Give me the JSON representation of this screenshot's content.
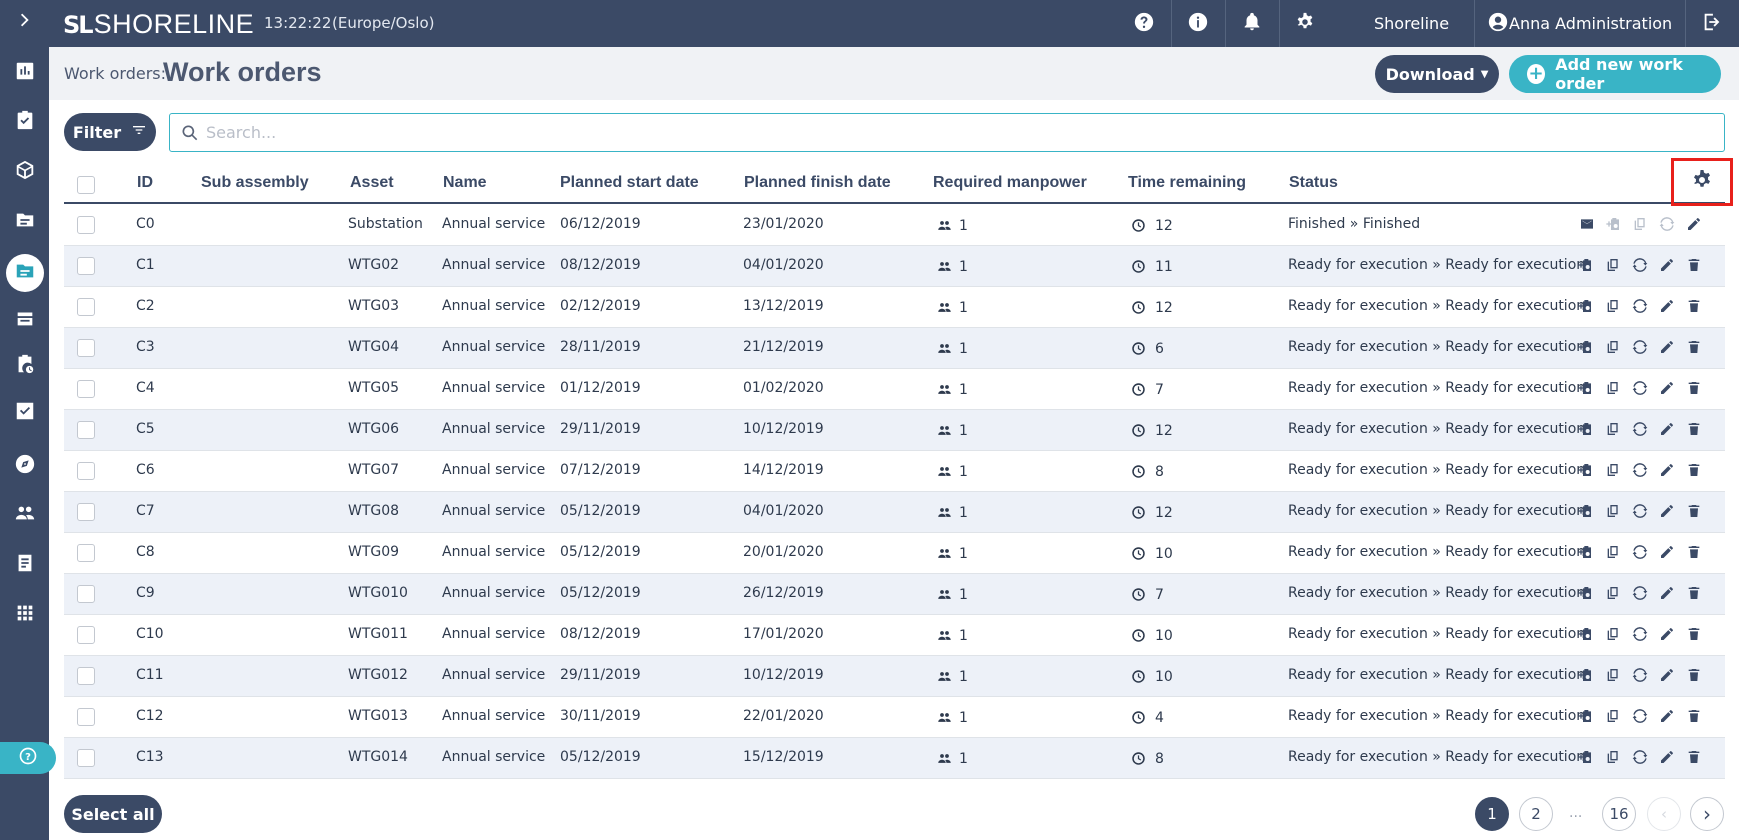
{
  "app": {
    "brand": "SHORELINE",
    "time": "13:22:22",
    "timezone": "(Europe/Oslo)"
  },
  "topbar": {
    "org_label": "Shoreline",
    "user_label": "Anna Administration"
  },
  "header": {
    "breadcrumb": "Work orders:",
    "title": "Work orders",
    "download_label": "Download",
    "add_label": "Add new work order"
  },
  "filter": {
    "label": "Filter",
    "search_placeholder": "Search..."
  },
  "table": {
    "columns": [
      "ID",
      "Sub assembly",
      "Asset",
      "Name",
      "Planned start date",
      "Planned finish date",
      "Required manpower",
      "Time remaining",
      "Status"
    ],
    "rows": [
      {
        "id": "C0",
        "sub": "",
        "asset": "Substation",
        "name": "Annual service",
        "start": "06/12/2019",
        "finish": "23/01/2020",
        "manpower": "1",
        "remaining": "12",
        "status": "Finished » Finished"
      },
      {
        "id": "C1",
        "sub": "",
        "asset": "WTG02",
        "name": "Annual service",
        "start": "08/12/2019",
        "finish": "04/01/2020",
        "manpower": "1",
        "remaining": "11",
        "status": "Ready for execution » Ready for execution"
      },
      {
        "id": "C2",
        "sub": "",
        "asset": "WTG03",
        "name": "Annual service",
        "start": "02/12/2019",
        "finish": "13/12/2019",
        "manpower": "1",
        "remaining": "12",
        "status": "Ready for execution » Ready for execution"
      },
      {
        "id": "C3",
        "sub": "",
        "asset": "WTG04",
        "name": "Annual service",
        "start": "28/11/2019",
        "finish": "21/12/2019",
        "manpower": "1",
        "remaining": "6",
        "status": "Ready for execution » Ready for execution"
      },
      {
        "id": "C4",
        "sub": "",
        "asset": "WTG05",
        "name": "Annual service",
        "start": "01/12/2019",
        "finish": "01/02/2020",
        "manpower": "1",
        "remaining": "7",
        "status": "Ready for execution » Ready for execution"
      },
      {
        "id": "C5",
        "sub": "",
        "asset": "WTG06",
        "name": "Annual service",
        "start": "29/11/2019",
        "finish": "10/12/2019",
        "manpower": "1",
        "remaining": "12",
        "status": "Ready for execution » Ready for execution"
      },
      {
        "id": "C6",
        "sub": "",
        "asset": "WTG07",
        "name": "Annual service",
        "start": "07/12/2019",
        "finish": "14/12/2019",
        "manpower": "1",
        "remaining": "8",
        "status": "Ready for execution » Ready for execution"
      },
      {
        "id": "C7",
        "sub": "",
        "asset": "WTG08",
        "name": "Annual service",
        "start": "05/12/2019",
        "finish": "04/01/2020",
        "manpower": "1",
        "remaining": "12",
        "status": "Ready for execution » Ready for execution"
      },
      {
        "id": "C8",
        "sub": "",
        "asset": "WTG09",
        "name": "Annual service",
        "start": "05/12/2019",
        "finish": "20/01/2020",
        "manpower": "1",
        "remaining": "10",
        "status": "Ready for execution » Ready for execution"
      },
      {
        "id": "C9",
        "sub": "",
        "asset": "WTG010",
        "name": "Annual service",
        "start": "05/12/2019",
        "finish": "26/12/2019",
        "manpower": "1",
        "remaining": "7",
        "status": "Ready for execution » Ready for execution"
      },
      {
        "id": "C10",
        "sub": "",
        "asset": "WTG011",
        "name": "Annual service",
        "start": "08/12/2019",
        "finish": "17/01/2020",
        "manpower": "1",
        "remaining": "10",
        "status": "Ready for execution » Ready for execution"
      },
      {
        "id": "C11",
        "sub": "",
        "asset": "WTG012",
        "name": "Annual service",
        "start": "29/11/2019",
        "finish": "10/12/2019",
        "manpower": "1",
        "remaining": "10",
        "status": "Ready for execution » Ready for execution"
      },
      {
        "id": "C12",
        "sub": "",
        "asset": "WTG013",
        "name": "Annual service",
        "start": "30/11/2019",
        "finish": "22/01/2020",
        "manpower": "1",
        "remaining": "4",
        "status": "Ready for execution » Ready for execution"
      },
      {
        "id": "C13",
        "sub": "",
        "asset": "WTG014",
        "name": "Annual service",
        "start": "05/12/2019",
        "finish": "15/12/2019",
        "manpower": "1",
        "remaining": "8",
        "status": "Ready for execution » Ready for execution"
      }
    ]
  },
  "footer": {
    "select_all": "Select all",
    "pages": [
      "1",
      "2",
      "16"
    ],
    "ellipsis": "...",
    "current_page": "1"
  },
  "colors": {
    "navy": "#3b4a66",
    "teal": "#39b4c6",
    "highlight": "#e8201b",
    "row_alt": "#edf1f8"
  },
  "icons": {
    "sidebar": [
      "chevron-right-icon",
      "chart-icon",
      "clipboard-check-icon",
      "cube-icon",
      "folder-icon",
      "work-orders-icon",
      "stack-icon",
      "clipboard-clock-icon",
      "checklist-icon",
      "compass-icon",
      "people-icon",
      "report-icon",
      "apps-grid-icon"
    ]
  }
}
